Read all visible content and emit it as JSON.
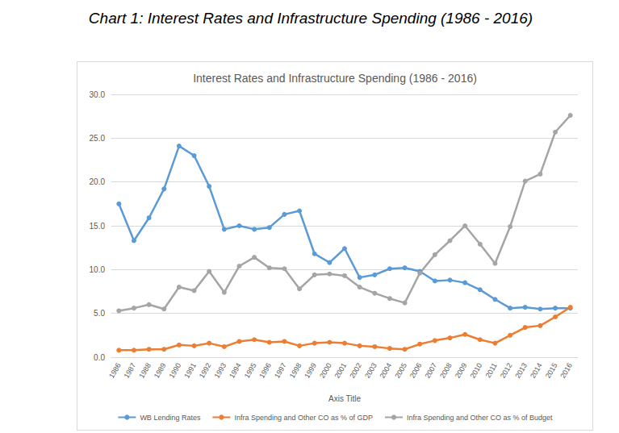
{
  "chart_data": {
    "type": "line",
    "caption": "Chart 1: Interest Rates and Infrastructure Spending (1986 - 2016)",
    "title": "Interest Rates and Infrastructure Spending (1986 - 2016)",
    "x_label": "Axis Title",
    "categories": [
      "1986",
      "1987",
      "1988",
      "1989",
      "1990",
      "1991",
      "1992",
      "1993",
      "1994",
      "1995",
      "1996",
      "1997",
      "1998",
      "1999",
      "2000",
      "2001",
      "2002",
      "2003",
      "2004",
      "2005",
      "2006",
      "2007",
      "2008",
      "2009",
      "2010",
      "2011",
      "2012",
      "2013",
      "2014",
      "2015",
      "2016"
    ],
    "series": [
      {
        "name": "WB Lending Rates",
        "color": "#5b9bd5",
        "values": [
          17.5,
          13.3,
          15.9,
          19.2,
          24.1,
          23.0,
          19.5,
          14.6,
          15.0,
          14.6,
          14.8,
          16.3,
          16.7,
          11.8,
          10.8,
          12.4,
          9.1,
          9.4,
          10.1,
          10.2,
          9.8,
          8.7,
          8.8,
          8.5,
          7.7,
          6.6,
          5.6,
          5.7,
          5.5,
          5.6,
          5.6
        ]
      },
      {
        "name": "Infra Spending and Other CO as % of GDP",
        "color": "#ed7d31",
        "values": [
          0.8,
          0.8,
          0.9,
          0.9,
          1.4,
          1.3,
          1.6,
          1.2,
          1.8,
          2.0,
          1.7,
          1.8,
          1.3,
          1.6,
          1.7,
          1.6,
          1.3,
          1.2,
          1.0,
          0.9,
          1.5,
          1.9,
          2.2,
          2.6,
          2.0,
          1.6,
          2.5,
          3.4,
          3.6,
          4.6,
          5.7
        ]
      },
      {
        "name": "Infra Spending and Other CO as % of Budget",
        "color": "#a5a5a5",
        "values": [
          5.3,
          5.6,
          6.0,
          5.5,
          8.0,
          7.6,
          9.8,
          7.4,
          10.4,
          11.4,
          10.2,
          10.1,
          7.8,
          9.4,
          9.5,
          9.3,
          8.0,
          7.3,
          6.7,
          6.2,
          9.6,
          11.7,
          13.3,
          15.0,
          12.9,
          10.7,
          14.9,
          20.1,
          20.9,
          25.7,
          27.6
        ]
      }
    ],
    "ylim": [
      0,
      30
    ],
    "yticks": [
      {
        "value": 0,
        "label": "0.0"
      },
      {
        "value": 5,
        "label": "5.0"
      },
      {
        "value": 10,
        "label": "10.0"
      },
      {
        "value": 15,
        "label": "15.0"
      },
      {
        "value": 20,
        "label": "20.0"
      },
      {
        "value": 25,
        "label": "25.0"
      },
      {
        "value": 30,
        "label": "30.0"
      }
    ],
    "grid": true,
    "legend": "bottom",
    "marker": "circle"
  }
}
